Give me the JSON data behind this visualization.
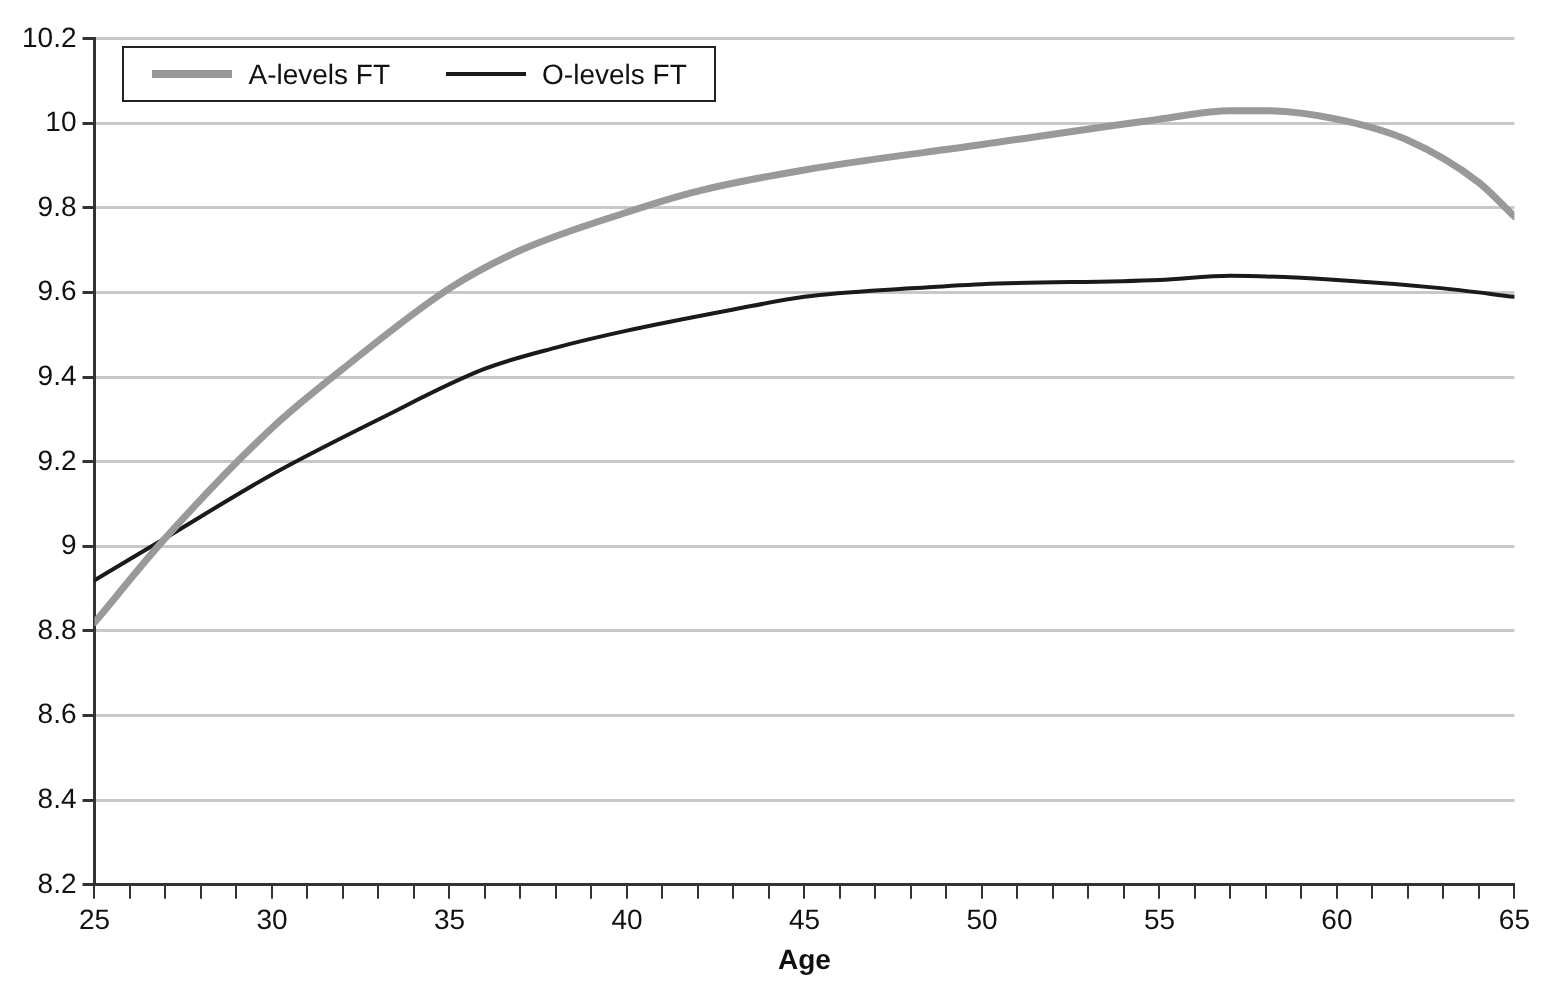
{
  "chart_data": {
    "type": "line",
    "xlabel": "Age",
    "series": [
      {
        "name": "A-levels FT",
        "color": "#999999",
        "x": [
          25,
          27,
          30,
          32,
          35,
          37,
          40,
          42,
          45,
          50,
          55,
          57,
          58,
          60,
          62,
          64,
          65
        ],
        "values": [
          8.82,
          9.02,
          9.28,
          9.42,
          9.61,
          9.7,
          9.79,
          9.84,
          9.89,
          9.95,
          10.01,
          10.03,
          10.03,
          10.01,
          9.96,
          9.86,
          9.78
        ]
      },
      {
        "name": "O-levels FT",
        "color": "#1a1a1a",
        "x": [
          25,
          27,
          30,
          33,
          36,
          38,
          40,
          43,
          45,
          48,
          50,
          55,
          57,
          60,
          63,
          65
        ],
        "values": [
          8.92,
          9.02,
          9.17,
          9.3,
          9.42,
          9.47,
          9.51,
          9.56,
          9.59,
          9.61,
          9.62,
          9.63,
          9.64,
          9.63,
          9.61,
          9.59
        ]
      }
    ],
    "xlim": [
      25,
      65
    ],
    "xticks": [
      25,
      {
        "value": 26,
        "label": null
      },
      {
        "value": 27,
        "label": null
      },
      {
        "value": 28,
        "label": null
      },
      {
        "value": 29,
        "label": null
      },
      30,
      {
        "value": 31,
        "label": null
      },
      {
        "value": 32,
        "label": null
      },
      {
        "value": 33,
        "label": null
      },
      {
        "value": 34,
        "label": null
      },
      35,
      {
        "value": 36,
        "label": null
      },
      {
        "value": 37,
        "label": null
      },
      {
        "value": 38,
        "label": null
      },
      {
        "value": 39,
        "label": null
      },
      40,
      {
        "value": 41,
        "label": null
      },
      {
        "value": 42,
        "label": null
      },
      {
        "value": 43,
        "label": null
      },
      {
        "value": 44,
        "label": null
      },
      45,
      {
        "value": 46,
        "label": null
      },
      {
        "value": 47,
        "label": null
      },
      {
        "value": 48,
        "label": null
      },
      {
        "value": 49,
        "label": null
      },
      50,
      {
        "value": 51,
        "label": null
      },
      {
        "value": 52,
        "label": null
      },
      {
        "value": 53,
        "label": null
      },
      {
        "value": 54,
        "label": null
      },
      55,
      {
        "value": 56,
        "label": null
      },
      {
        "value": 57,
        "label": null
      },
      {
        "value": 58,
        "label": null
      },
      {
        "value": 59,
        "label": null
      },
      60,
      {
        "value": 61,
        "label": null
      },
      {
        "value": 62,
        "label": null
      },
      {
        "value": 63,
        "label": null
      },
      {
        "value": 64,
        "label": null
      },
      65
    ],
    "ylim": [
      8.2,
      10.2
    ],
    "yticks": [
      8.2,
      8.4,
      8.6,
      8.8,
      9,
      9.2,
      9.4,
      9.6,
      9.8,
      10,
      10.2
    ],
    "grid": "y",
    "legend": "top left",
    "marker": "none",
    "line_style": "solid"
  }
}
